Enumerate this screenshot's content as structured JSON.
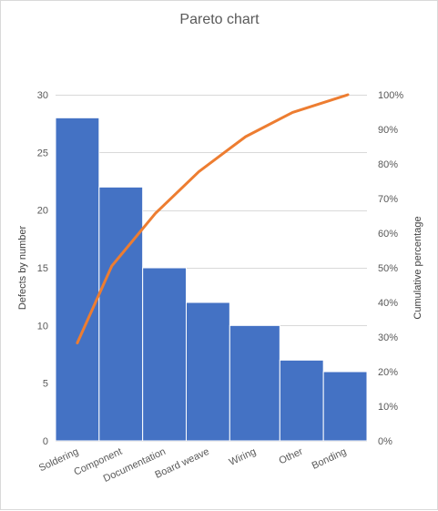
{
  "chart_data": {
    "type": "bar",
    "title": "Pareto chart",
    "ylabel": "Defects by number",
    "y2label": "Cumulative percentage",
    "categories": [
      "Soldering",
      "Component",
      "Documentation",
      "Board weave",
      "Wiring",
      "Other",
      "Bonding"
    ],
    "series": [
      {
        "type": "bar",
        "values": [
          28,
          22,
          15,
          12,
          10,
          7,
          6
        ],
        "color": "#4472C4"
      },
      {
        "type": "line",
        "axis": "secondary",
        "values": [
          28.3,
          50.5,
          65.7,
          77.8,
          87.9,
          94.9,
          100
        ],
        "color": "#ED7D31"
      }
    ],
    "ylim": [
      0,
      30
    ],
    "y_ticks": [
      0,
      5,
      10,
      15,
      20,
      25,
      30
    ],
    "y2lim": [
      0,
      100
    ],
    "y2_ticks": [
      "0%",
      "10%",
      "20%",
      "30%",
      "40%",
      "50%",
      "60%",
      "70%",
      "80%",
      "90%",
      "100%"
    ],
    "grid": true
  }
}
